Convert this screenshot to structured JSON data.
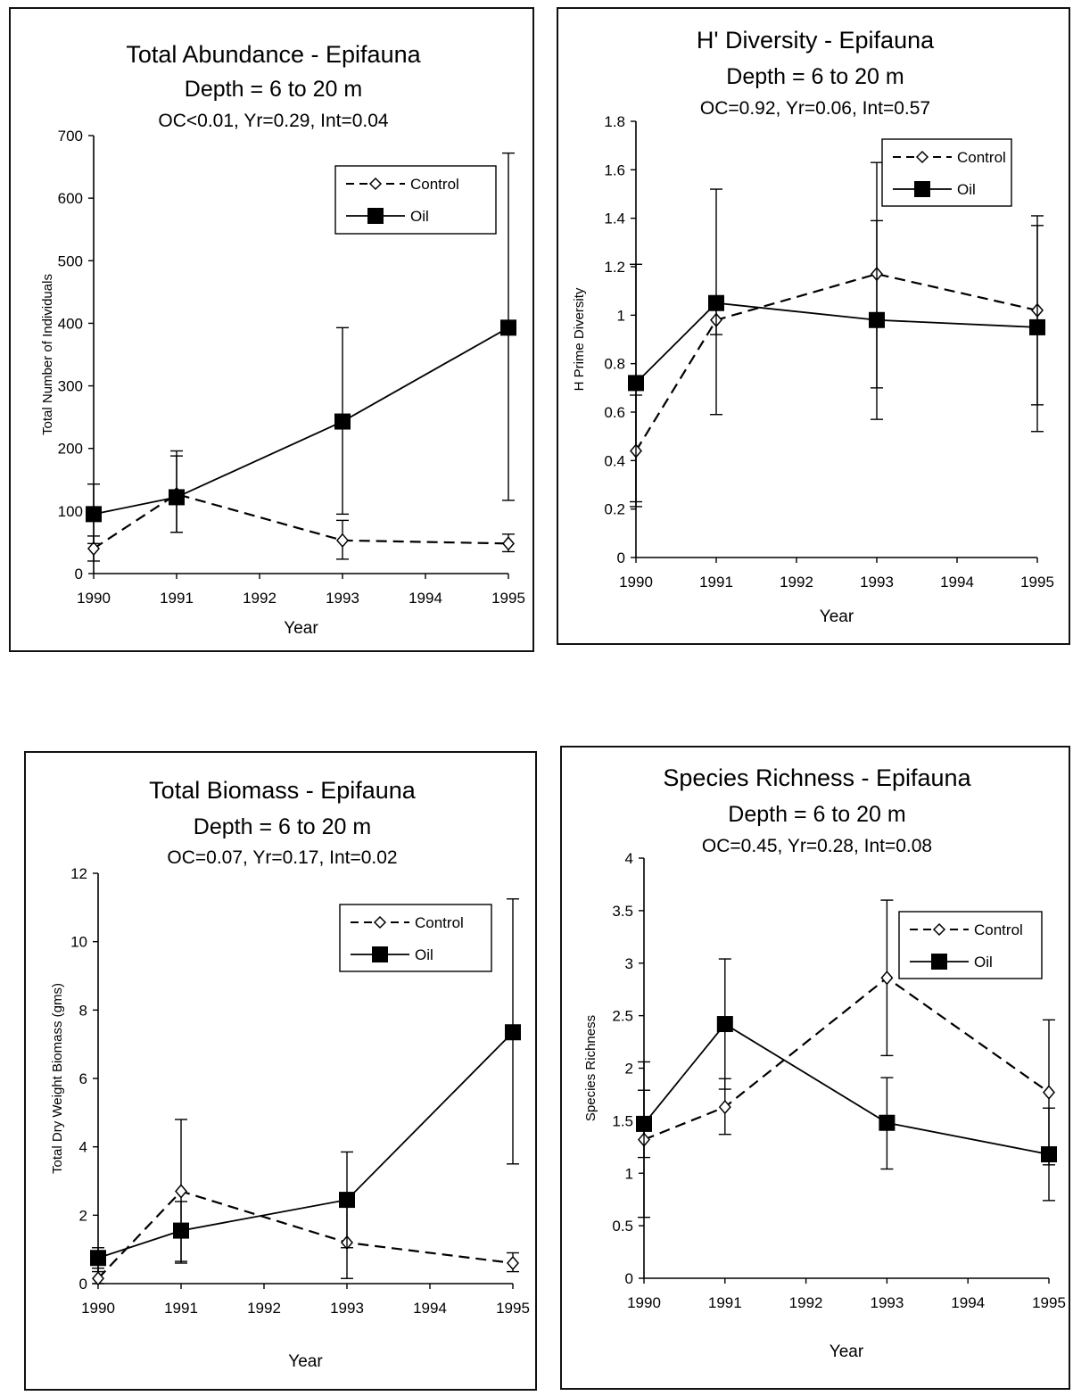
{
  "chart_data": [
    {
      "type": "line",
      "title": "Total Abundance - Epifauna",
      "subtitle": "Depth = 6 to 20 m",
      "stats": "OC<0.01, Yr=0.29, Int=0.04",
      "xlabel": "Year",
      "ylabel": "Total Number of Individuals",
      "x_ticks": [
        "1990",
        "1991",
        "1992",
        "1993",
        "1994",
        "1995"
      ],
      "ylim": [
        0,
        700
      ],
      "y_ticks": [
        "0",
        "100",
        "200",
        "300",
        "400",
        "500",
        "600",
        "700"
      ],
      "legend": "top-right",
      "series": [
        {
          "name": "Control",
          "style": "dashed",
          "marker": "open-diamond",
          "points": [
            {
              "x": 1990,
              "y": 40,
              "err_low": 20,
              "err_high": 60
            },
            {
              "x": 1991,
              "y": 127,
              "err_low": 66,
              "err_high": 188
            },
            {
              "x": 1993,
              "y": 53,
              "err_low": 23,
              "err_high": 85
            },
            {
              "x": 1995,
              "y": 48,
              "err_low": 35,
              "err_high": 63
            }
          ]
        },
        {
          "name": "Oil",
          "style": "solid",
          "marker": "filled-square",
          "points": [
            {
              "x": 1990,
              "y": 95,
              "err_low": 48,
              "err_high": 143
            },
            {
              "x": 1991,
              "y": 122,
              "err_low": 66,
              "err_high": 196
            },
            {
              "x": 1993,
              "y": 243,
              "err_low": 95,
              "err_high": 393
            },
            {
              "x": 1995,
              "y": 393,
              "err_low": 117,
              "err_high": 672
            }
          ]
        }
      ]
    },
    {
      "type": "line",
      "title": "H' Diversity - Epifauna",
      "subtitle": "Depth = 6 to 20 m",
      "stats": "OC=0.92, Yr=0.06, Int=0.57",
      "xlabel": "Year",
      "ylabel": "H Prime Diversity",
      "x_ticks": [
        "1990",
        "1991",
        "1992",
        "1993",
        "1994",
        "1995"
      ],
      "ylim": [
        0,
        1.8
      ],
      "y_ticks": [
        "0",
        "0.2",
        "0.4",
        "0.6",
        "0.8",
        "1",
        "1.2",
        "1.4",
        "1.6",
        "1.8"
      ],
      "legend": "top-right",
      "series": [
        {
          "name": "Control",
          "style": "dashed",
          "marker": "open-diamond",
          "points": [
            {
              "x": 1990,
              "y": 0.44,
              "err_low": 0.21,
              "err_high": 0.67
            },
            {
              "x": 1991,
              "y": 0.98,
              "err_low": 0.92,
              "err_high": 1.04
            },
            {
              "x": 1993,
              "y": 1.17,
              "err_low": 0.7,
              "err_high": 1.63
            },
            {
              "x": 1995,
              "y": 1.02,
              "err_low": 0.63,
              "err_high": 1.41
            }
          ]
        },
        {
          "name": "Oil",
          "style": "solid",
          "marker": "filled-square",
          "points": [
            {
              "x": 1990,
              "y": 0.72,
              "err_low": 0.23,
              "err_high": 1.21
            },
            {
              "x": 1991,
              "y": 1.05,
              "err_low": 0.59,
              "err_high": 1.52
            },
            {
              "x": 1993,
              "y": 0.98,
              "err_low": 0.57,
              "err_high": 1.39
            },
            {
              "x": 1995,
              "y": 0.95,
              "err_low": 0.52,
              "err_high": 1.37
            }
          ]
        }
      ]
    },
    {
      "type": "line",
      "title": "Total Biomass - Epifauna",
      "subtitle": "Depth = 6 to 20 m",
      "stats": "OC=0.07, Yr=0.17, Int=0.02",
      "xlabel": "Year",
      "ylabel": "Total Dry Weight Biomass (gms)",
      "x_ticks": [
        "1990",
        "1991",
        "1992",
        "1993",
        "1994",
        "1995"
      ],
      "ylim": [
        0,
        12
      ],
      "y_ticks": [
        "0",
        "2",
        "4",
        "6",
        "8",
        "10",
        "12"
      ],
      "legend": "top-right",
      "series": [
        {
          "name": "Control",
          "style": "dashed",
          "marker": "open-diamond",
          "points": [
            {
              "x": 1990,
              "y": 0.15,
              "err_low": 0.0,
              "err_high": 0.45
            },
            {
              "x": 1991,
              "y": 2.7,
              "err_low": 0.6,
              "err_high": 4.8
            },
            {
              "x": 1993,
              "y": 1.2,
              "err_low": 0.15,
              "err_high": 2.3
            },
            {
              "x": 1995,
              "y": 0.6,
              "err_low": 0.35,
              "err_high": 0.9
            }
          ]
        },
        {
          "name": "Oil",
          "style": "solid",
          "marker": "filled-square",
          "points": [
            {
              "x": 1990,
              "y": 0.75,
              "err_low": 0.35,
              "err_high": 1.05
            },
            {
              "x": 1991,
              "y": 1.55,
              "err_low": 0.65,
              "err_high": 2.4
            },
            {
              "x": 1993,
              "y": 2.45,
              "err_low": 1.05,
              "err_high": 3.85
            },
            {
              "x": 1995,
              "y": 7.35,
              "err_low": 3.5,
              "err_high": 11.25
            }
          ]
        }
      ]
    },
    {
      "type": "line",
      "title": "Species Richness - Epifauna",
      "subtitle": "Depth = 6 to 20 m",
      "stats": "OC=0.45, Yr=0.28, Int=0.08",
      "xlabel": "Year",
      "ylabel": "Species Richness",
      "x_ticks": [
        "1990",
        "1991",
        "1992",
        "1993",
        "1994",
        "1995"
      ],
      "ylim": [
        0,
        4
      ],
      "y_ticks": [
        "0",
        "0.5",
        "1",
        "1.5",
        "2",
        "2.5",
        "3",
        "3.5",
        "4"
      ],
      "legend": "top-right",
      "series": [
        {
          "name": "Control",
          "style": "dashed",
          "marker": "open-diamond",
          "points": [
            {
              "x": 1990,
              "y": 1.32,
              "err_low": 0.58,
              "err_high": 2.06
            },
            {
              "x": 1991,
              "y": 1.63,
              "err_low": 1.37,
              "err_high": 1.9
            },
            {
              "x": 1993,
              "y": 2.86,
              "err_low": 2.12,
              "err_high": 3.6
            },
            {
              "x": 1995,
              "y": 1.77,
              "err_low": 1.08,
              "err_high": 2.46
            }
          ]
        },
        {
          "name": "Oil",
          "style": "solid",
          "marker": "filled-square",
          "points": [
            {
              "x": 1990,
              "y": 1.47,
              "err_low": 1.15,
              "err_high": 1.79
            },
            {
              "x": 1991,
              "y": 2.42,
              "err_low": 1.8,
              "err_high": 3.04
            },
            {
              "x": 1993,
              "y": 1.48,
              "err_low": 1.04,
              "err_high": 1.91
            },
            {
              "x": 1995,
              "y": 1.18,
              "err_low": 0.74,
              "err_high": 1.62
            }
          ]
        }
      ]
    }
  ]
}
